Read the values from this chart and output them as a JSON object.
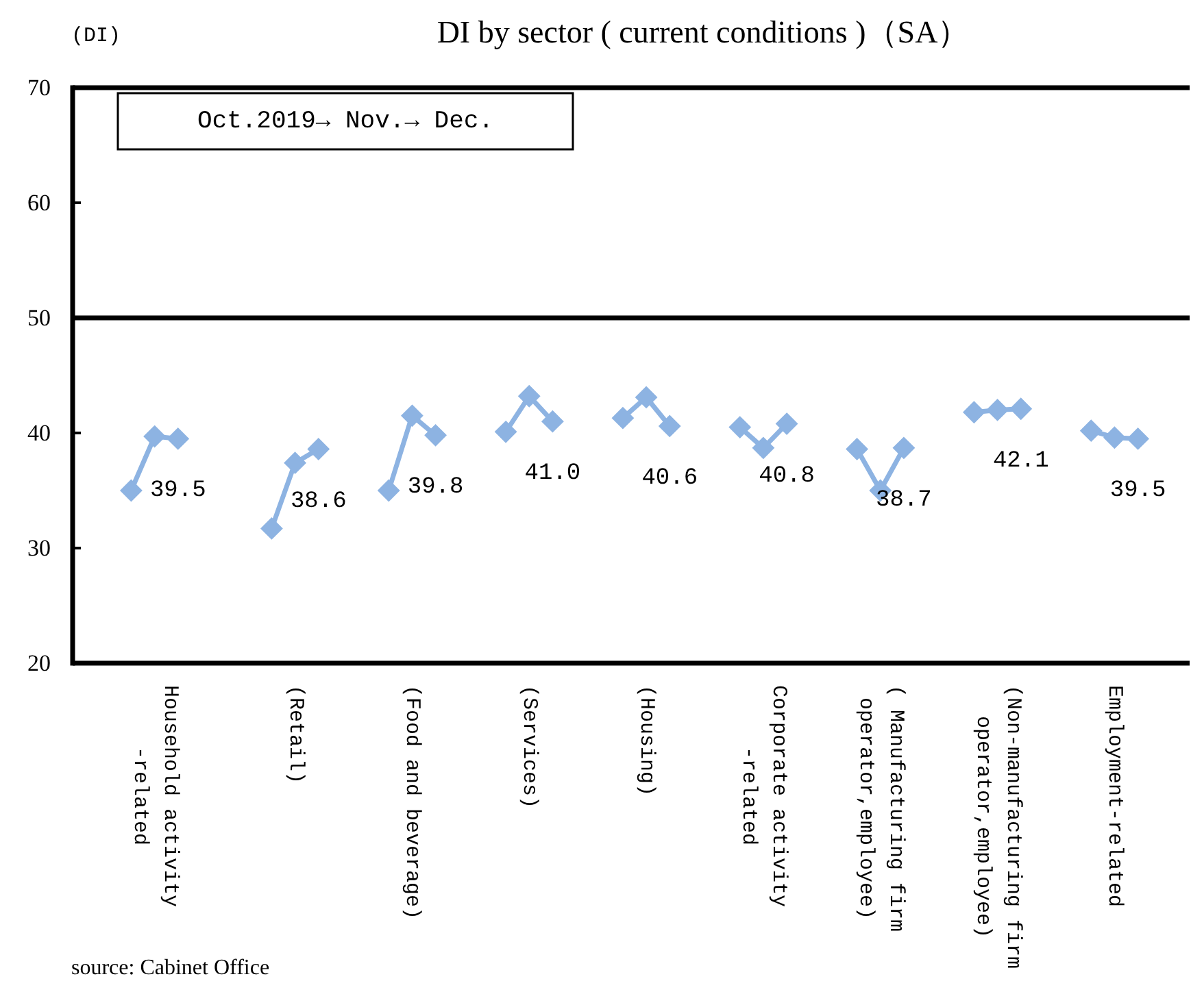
{
  "chart_data": {
    "type": "line",
    "title": "DI by sector ( current conditions )（SA）",
    "ylabel": "(DI)",
    "categories": [
      null,
      null,
      null,
      "Household activity\n-related",
      null,
      null,
      null,
      null,
      null,
      "(Retail)",
      null,
      null,
      null,
      null,
      "(Food and beverage)",
      null,
      null,
      null,
      null,
      "(Services)",
      null,
      null,
      null,
      null,
      "(Housing)",
      null,
      null,
      null,
      null,
      "Corporate activity\n-related",
      null,
      null,
      null,
      null,
      "( Manufacturing firm\noperator,employee)",
      null,
      null,
      null,
      null,
      "(Non-manufacturing firm\noperator,employee)",
      null,
      null,
      null,
      null,
      "Employment-related",
      null,
      null,
      null
    ],
    "series": [
      {
        "color": "#8db3e2",
        "values": [
          null,
          null,
          35.0,
          39.7,
          39.5,
          null,
          null,
          null,
          31.7,
          37.4,
          38.6,
          null,
          null,
          35.0,
          41.5,
          39.8,
          null,
          null,
          40.1,
          43.2,
          41.0,
          null,
          null,
          41.3,
          43.1,
          40.6,
          null,
          null,
          40.5,
          38.7,
          40.8,
          null,
          null,
          38.6,
          35.0,
          38.7,
          null,
          null,
          41.8,
          42.0,
          42.1,
          null,
          null,
          40.2,
          39.6,
          39.5,
          null,
          null
        ],
        "value_labels": [
          null,
          null,
          null,
          null,
          "39.5",
          null,
          null,
          null,
          null,
          null,
          "38.6",
          null,
          null,
          null,
          null,
          "39.8",
          null,
          null,
          null,
          null,
          "41.0",
          null,
          null,
          null,
          null,
          "40.6",
          null,
          null,
          null,
          null,
          "40.8",
          null,
          null,
          null,
          null,
          "38.7",
          null,
          null,
          null,
          null,
          "42.1",
          null,
          null,
          null,
          null,
          "39.5",
          null,
          null
        ]
      }
    ],
    "ylim": [
      20,
      70
    ],
    "yticks": [
      20,
      30,
      40,
      50,
      60,
      70
    ],
    "ref_lines": [
      {
        "axis": "y",
        "value": 50,
        "color": "#000000"
      }
    ],
    "marker": "diamond",
    "annotations": [
      "Oct.2019→ Nov.→ Dec.",
      "source: Cabinet Office"
    ]
  }
}
